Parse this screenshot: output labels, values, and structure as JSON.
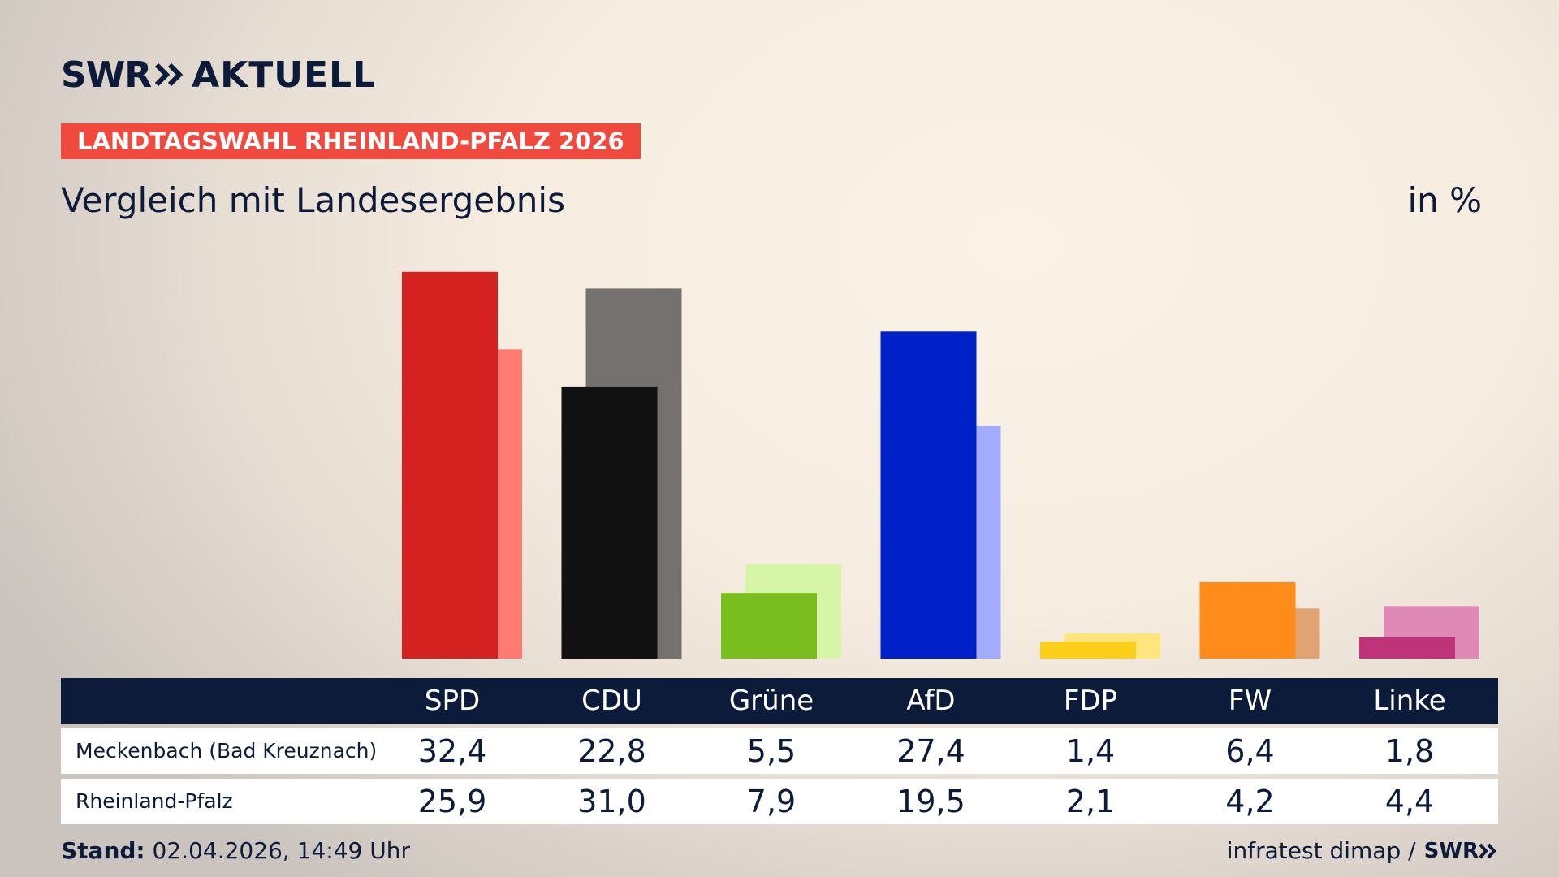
{
  "brand": {
    "swr": "SWR",
    "aktuell": "AKTUELL"
  },
  "tag": "LANDTAGSWAHL RHEINLAND-PFALZ 2026",
  "title": "Vergleich mit Landesergebnis",
  "unit": "in %",
  "footer": {
    "stand_label": "Stand:",
    "stand_value": "02.04.2026, 14:49 Uhr",
    "source": "infratest dimap /",
    "source_brand": "SWR"
  },
  "rows": [
    {
      "label": "Meckenbach (Bad Kreuznach)",
      "values": [
        "32,4",
        "22,8",
        "5,5",
        "27,4",
        "1,4",
        "6,4",
        "1,8"
      ]
    },
    {
      "label": "Rheinland-Pfalz",
      "values": [
        "25,9",
        "31,0",
        "7,9",
        "19,5",
        "2,1",
        "4,2",
        "4,4"
      ]
    }
  ],
  "chart_data": {
    "type": "bar",
    "categories": [
      "SPD",
      "CDU",
      "Grüne",
      "AfD",
      "FDP",
      "FW",
      "Linke"
    ],
    "series": [
      {
        "name": "Meckenbach (Bad Kreuznach)",
        "values": [
          32.4,
          22.8,
          5.5,
          27.4,
          1.4,
          6.4,
          1.8
        ]
      },
      {
        "name": "Rheinland-Pfalz",
        "values": [
          25.9,
          31.0,
          7.9,
          19.5,
          2.1,
          4.2,
          4.4
        ]
      }
    ],
    "colors_local": [
      "#d62121",
      "#111111",
      "#7abd1e",
      "#0020c8",
      "#fdcf18",
      "#ff8c1a",
      "#bf3378"
    ],
    "colors_state": [
      "#ff7b72",
      "#74716f",
      "#d6f5a6",
      "#a3abff",
      "#ffe57c",
      "#e0a373",
      "#df89b6"
    ],
    "ylim": [
      0,
      33
    ]
  }
}
